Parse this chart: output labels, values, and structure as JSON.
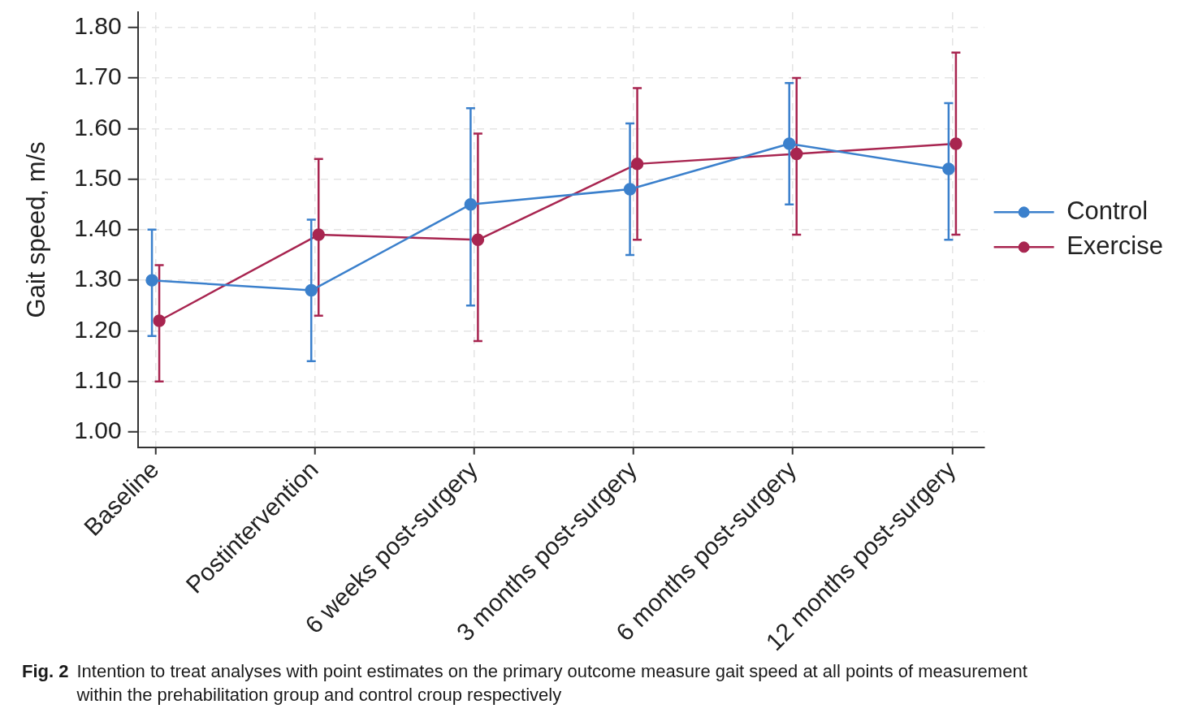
{
  "chart_data": {
    "type": "line",
    "categories": [
      "Baseline",
      "Postintervention",
      "6 weeks post-surgery",
      "3 months post-surgery",
      "6 months post-surgery",
      "12 months post-surgery"
    ],
    "ylabel": "Gait speed, m/s",
    "series": [
      {
        "name": "Control",
        "color": "#3b80cc",
        "values": [
          1.3,
          1.28,
          1.45,
          1.48,
          1.57,
          1.52
        ],
        "errors": [
          [
            1.19,
            1.4
          ],
          [
            1.14,
            1.42
          ],
          [
            1.25,
            1.64
          ],
          [
            1.35,
            1.61
          ],
          [
            1.45,
            1.69
          ],
          [
            1.38,
            1.65
          ]
        ]
      },
      {
        "name": "Exercise",
        "color": "#a82550",
        "values": [
          1.22,
          1.39,
          1.38,
          1.53,
          1.55,
          1.57
        ],
        "errors": [
          [
            1.1,
            1.33
          ],
          [
            1.23,
            1.54
          ],
          [
            1.18,
            1.59
          ],
          [
            1.38,
            1.68
          ],
          [
            1.39,
            1.7
          ],
          [
            1.39,
            1.75
          ]
        ]
      }
    ],
    "ylim": [
      0.97,
      1.83
    ],
    "yticks": [
      {
        "value": 1.0,
        "label": "1.00"
      },
      {
        "value": 1.1,
        "label": "1.10"
      },
      {
        "value": 1.2,
        "label": "1.20"
      },
      {
        "value": 1.3,
        "label": "1.30"
      },
      {
        "value": 1.4,
        "label": "1.40"
      },
      {
        "value": 1.5,
        "label": "1.50"
      },
      {
        "value": 1.6,
        "label": "1.60"
      },
      {
        "value": 1.7,
        "label": "1.70"
      },
      {
        "value": 1.8,
        "label": "1.80"
      }
    ],
    "grid": true,
    "legend": "right",
    "marker": "circle",
    "line_style": "solid",
    "annotations": [
      "Fig. 2",
      "Intention to treat analyses with point estimates on the primary outcome measure gait speed at all points of measurement within the prehabilitation group and control croup respectively"
    ]
  }
}
